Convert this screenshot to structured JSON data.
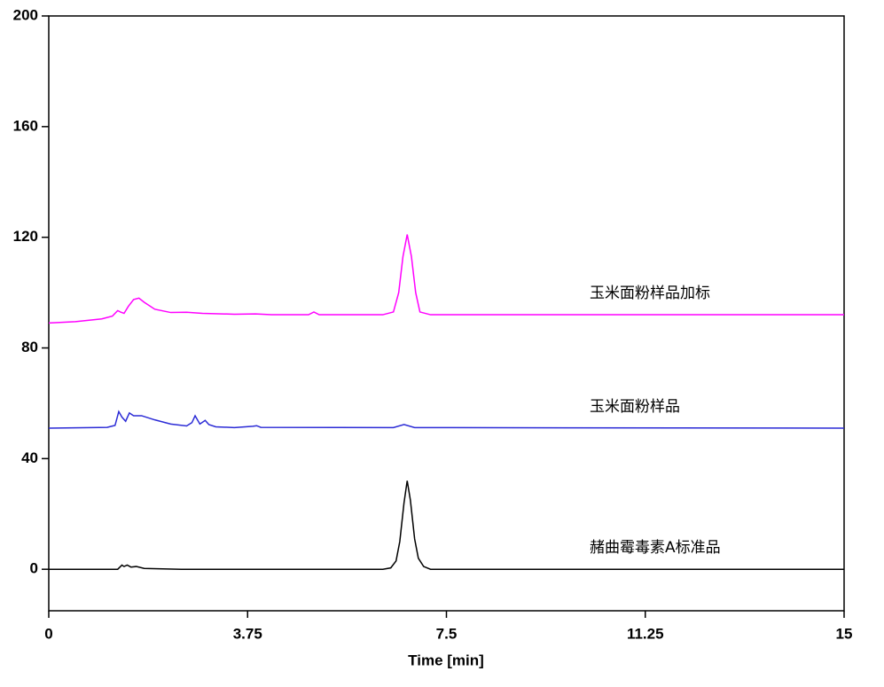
{
  "chart_data": {
    "type": "line",
    "xlabel": "Time [min]",
    "xlim": [
      0,
      15
    ],
    "xticks": [
      0,
      3.75,
      7.5,
      11.25,
      15
    ],
    "ylim": [
      -15,
      200
    ],
    "yticks": [
      0,
      40,
      80,
      120,
      160,
      200
    ],
    "series": [
      {
        "name": "玉米面粉样品加标",
        "color": "#ff00ff",
        "x": [
          0,
          0.5,
          1.0,
          1.2,
          1.3,
          1.35,
          1.42,
          1.5,
          1.6,
          1.7,
          1.8,
          2.0,
          2.3,
          2.6,
          2.9,
          3.5,
          3.9,
          4.2,
          4.9,
          5.0,
          5.1,
          6.3,
          6.5,
          6.6,
          6.68,
          6.76,
          6.84,
          6.92,
          7.0,
          7.2,
          15
        ],
        "values": [
          89,
          89.5,
          90.5,
          91.5,
          93.5,
          93,
          92.5,
          95,
          97.5,
          98,
          96.5,
          94,
          92.8,
          92.9,
          92.5,
          92.2,
          92.3,
          92,
          92,
          93,
          92,
          92,
          93,
          100,
          113,
          121,
          113,
          100,
          93,
          92,
          92
        ]
      },
      {
        "name": "玉米面粉样品",
        "color": "#2b2bd6",
        "x": [
          0,
          1.1,
          1.25,
          1.32,
          1.38,
          1.45,
          1.52,
          1.6,
          1.75,
          2.0,
          2.3,
          2.6,
          2.7,
          2.76,
          2.85,
          2.95,
          3.02,
          3.15,
          3.5,
          3.85,
          3.92,
          4.0,
          6.5,
          6.7,
          6.9,
          7.2,
          15
        ],
        "values": [
          51,
          51.3,
          52,
          57,
          55,
          53.5,
          56.5,
          55.5,
          55.5,
          54,
          52.5,
          51.8,
          53,
          55.5,
          52.5,
          53.8,
          52.3,
          51.5,
          51.2,
          51.7,
          51.9,
          51.3,
          51.2,
          52.3,
          51.2,
          51.2,
          51
        ]
      },
      {
        "name": "赭曲霉毒素A标准品",
        "color": "#000000",
        "x": [
          0,
          1.3,
          1.38,
          1.42,
          1.48,
          1.55,
          1.65,
          1.8,
          2.5,
          6.3,
          6.45,
          6.55,
          6.62,
          6.7,
          6.76,
          6.82,
          6.9,
          6.97,
          7.07,
          7.2,
          15
        ],
        "values": [
          0,
          0,
          1.5,
          1,
          1.5,
          0.8,
          1,
          0.3,
          0,
          0,
          0.5,
          3,
          10,
          24,
          32,
          25,
          11,
          4,
          1,
          0,
          0
        ]
      }
    ]
  }
}
